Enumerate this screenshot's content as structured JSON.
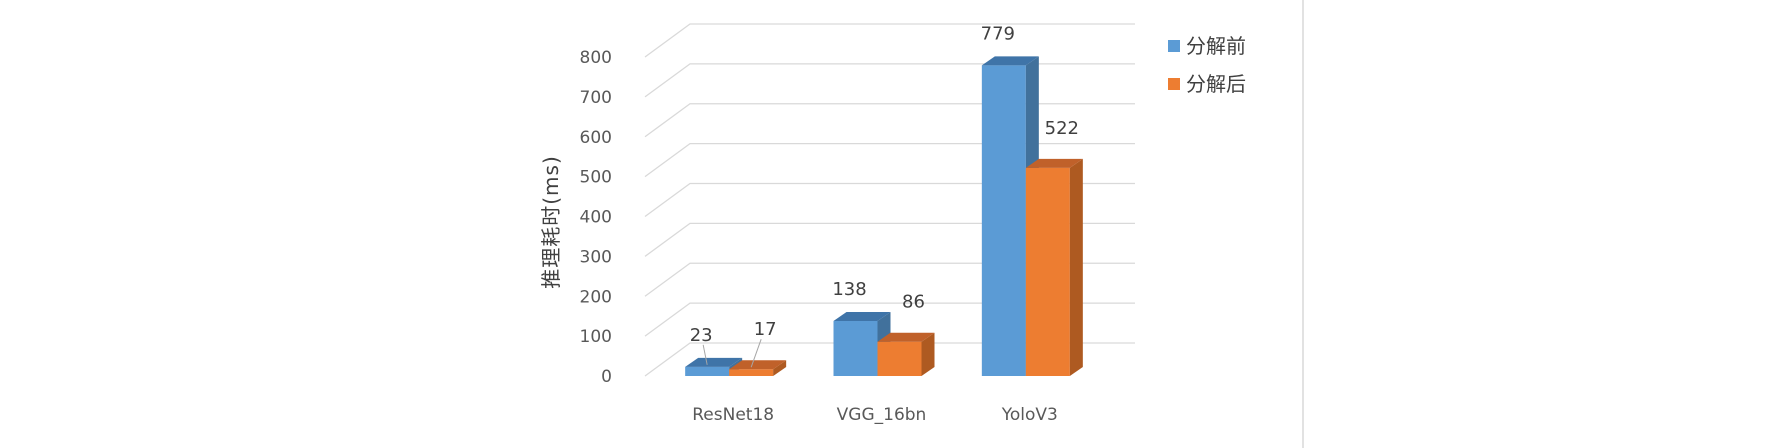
{
  "chart_data": {
    "type": "bar",
    "title": "",
    "xlabel": "",
    "ylabel": "推理耗时(ms)",
    "categories": [
      "ResNet18",
      "VGG_16bn",
      "YoloV3"
    ],
    "series": [
      {
        "name": "分解前",
        "values": [
          23,
          138,
          779
        ],
        "color": "#5B9BD5",
        "side_color": "#41719C",
        "top_color": "#3F74A8"
      },
      {
        "name": "分解后",
        "values": [
          17,
          86,
          522
        ],
        "color": "#ED7D31",
        "side_color": "#AE5A21",
        "top_color": "#C0612A"
      }
    ],
    "ylim": [
      0,
      800
    ],
    "yticks": [
      0,
      100,
      200,
      300,
      400,
      500,
      600,
      700,
      800
    ],
    "grid": true,
    "legend_position": "top-right",
    "style": "3d-clustered-column"
  }
}
